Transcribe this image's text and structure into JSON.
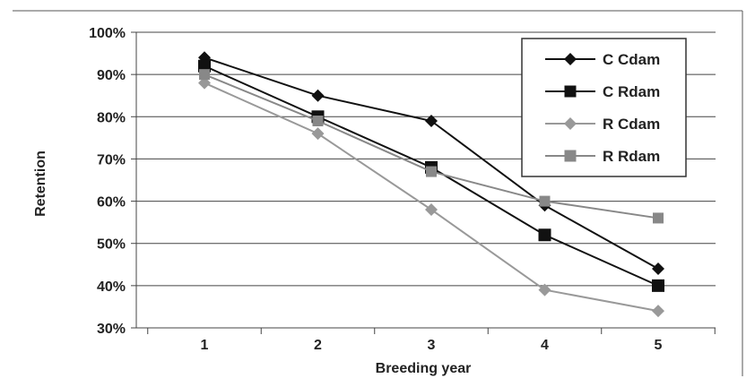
{
  "chart_data": {
    "type": "line",
    "title": "",
    "xlabel": "Breeding year",
    "ylabel": "Retention",
    "x": [
      1,
      2,
      3,
      4,
      5
    ],
    "ylim": [
      30,
      100
    ],
    "yticks": [
      "30%",
      "40%",
      "50%",
      "60%",
      "70%",
      "80%",
      "90%",
      "100%"
    ],
    "ytick_values": [
      30,
      40,
      50,
      60,
      70,
      80,
      90,
      100
    ],
    "grid": "horizontal",
    "legend_position": "top-right",
    "series": [
      {
        "name": "C Cdam",
        "values": [
          94,
          85,
          79,
          59,
          44
        ],
        "marker": "diamond",
        "color": "#111111"
      },
      {
        "name": "C Rdam",
        "values": [
          92,
          80,
          68,
          52,
          40
        ],
        "marker": "square",
        "color": "#111111"
      },
      {
        "name": "R Cdam",
        "values": [
          88,
          76,
          58,
          39,
          34
        ],
        "marker": "diamond",
        "color": "#999999"
      },
      {
        "name": "R Rdam",
        "values": [
          90,
          79,
          67,
          60,
          56
        ],
        "marker": "square",
        "color": "#888888"
      }
    ]
  }
}
